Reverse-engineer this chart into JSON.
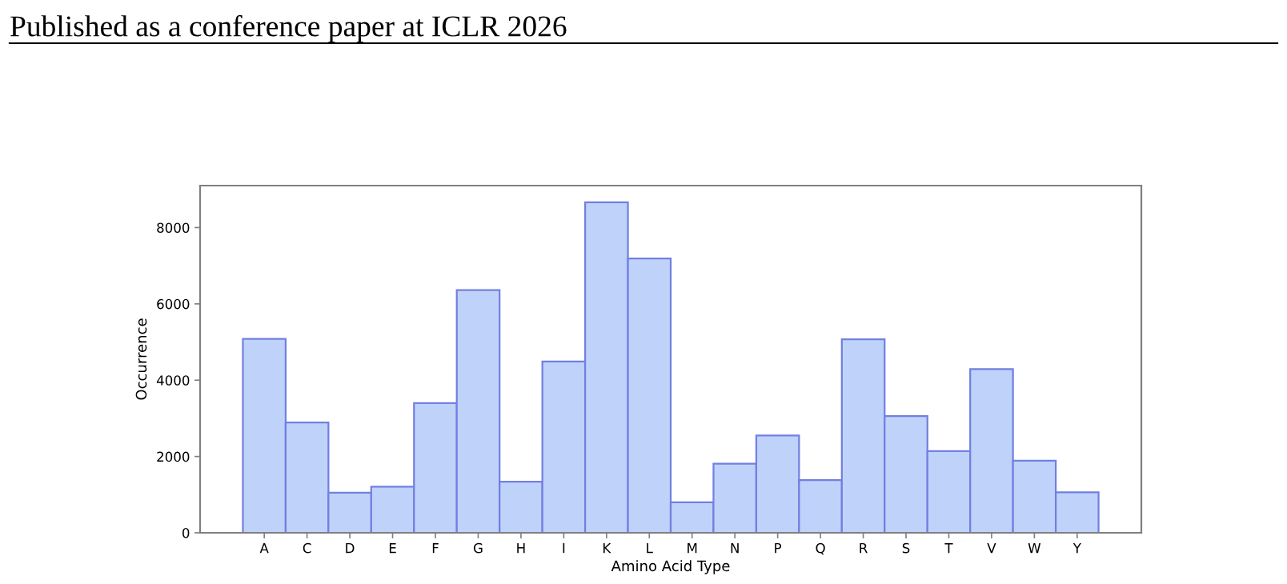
{
  "chart_data": {
    "type": "bar",
    "annotations": [
      "Published as a conference paper at ICLR 2026"
    ],
    "xlabel": "Amino Acid Type",
    "ylabel": "Occurrence",
    "categories": [
      "A",
      "C",
      "D",
      "E",
      "F",
      "G",
      "H",
      "I",
      "K",
      "L",
      "M",
      "N",
      "P",
      "Q",
      "R",
      "S",
      "T",
      "V",
      "W",
      "Y"
    ],
    "values": [
      5080,
      2890,
      1050,
      1210,
      3400,
      6360,
      1340,
      4490,
      8660,
      7190,
      800,
      1810,
      2550,
      1380,
      5070,
      3060,
      2140,
      4290,
      1890,
      1060
    ],
    "color": "#bfd3fa",
    "ylim": [
      0,
      9100
    ],
    "yticks": [
      0,
      2000,
      4000,
      6000,
      8000
    ],
    "grid": false
  }
}
